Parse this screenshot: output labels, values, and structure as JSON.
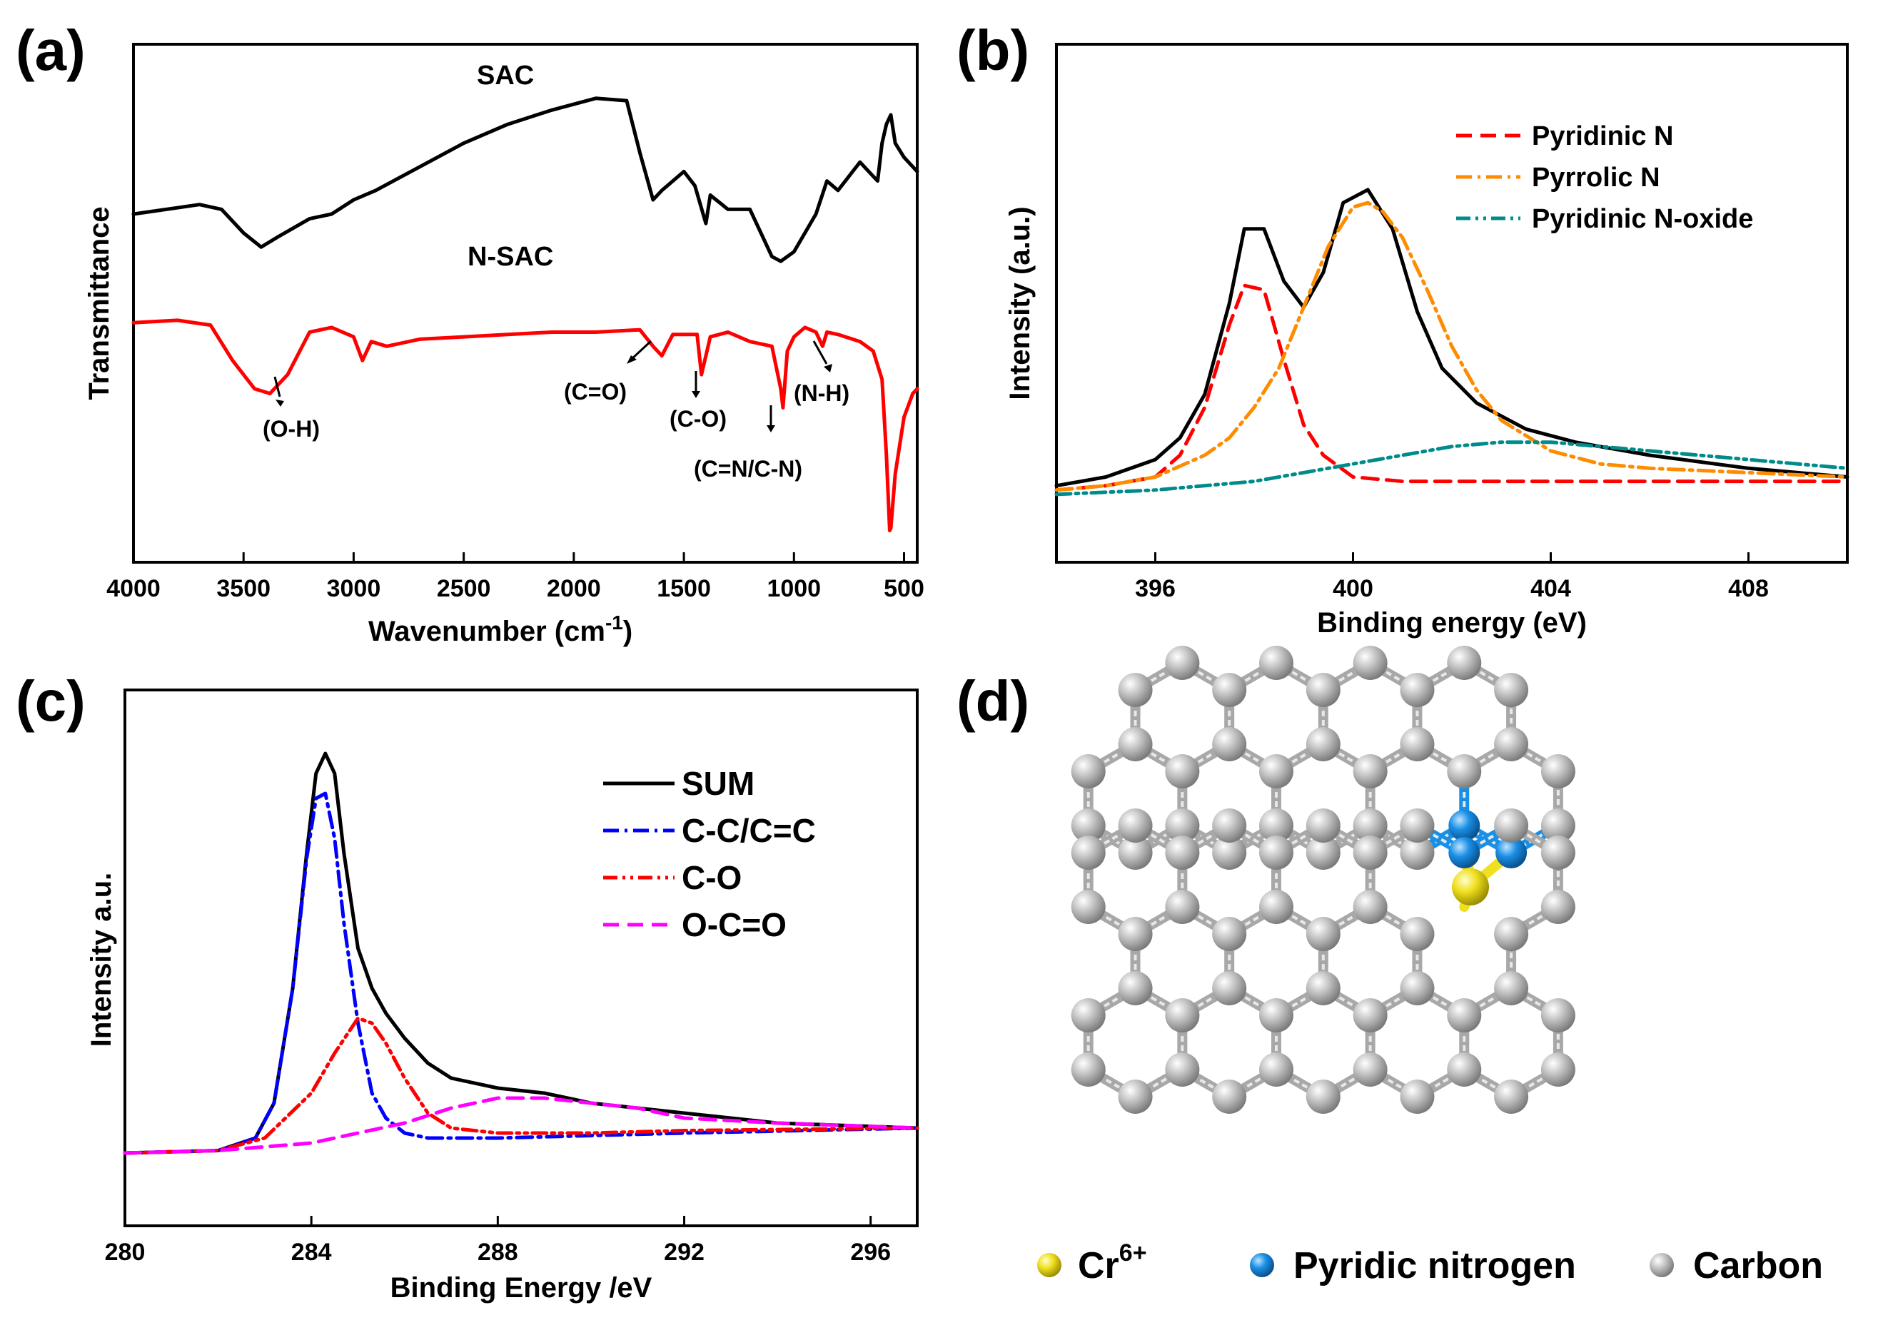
{
  "panels": {
    "a": {
      "label": "(a)"
    },
    "b": {
      "label": "(b)"
    },
    "c": {
      "label": "(c)"
    },
    "d": {
      "label": "(d)"
    }
  },
  "chart_data": [
    {
      "id": "a",
      "type": "line",
      "title": "",
      "xlabel": "Wavenumber (cm-1)",
      "xlabel_main": "Wavenumber (cm",
      "xlabel_sup": "-1",
      "xlabel_close": ")",
      "ylabel": "Transmittance",
      "xlim": [
        4000,
        440
      ],
      "ylim": [
        0,
        100
      ],
      "xticks": [
        4000,
        3500,
        3000,
        2500,
        2000,
        1500,
        1000,
        500
      ],
      "series": [
        {
          "name": "SAC",
          "color": "#000000",
          "x": [
            4000,
            3700,
            3600,
            3500,
            3420,
            3350,
            3200,
            3100,
            3000,
            2900,
            2700,
            2500,
            2300,
            2100,
            1900,
            1760,
            1700,
            1640,
            1600,
            1500,
            1450,
            1400,
            1380,
            1300,
            1200,
            1100,
            1060,
            1000,
            900,
            850,
            800,
            750,
            700,
            660,
            620,
            600,
            580,
            560,
            540,
            500,
            440
          ],
          "y": [
            71,
            73,
            72,
            67,
            64,
            66,
            70,
            71,
            74,
            76,
            81,
            86,
            90,
            93,
            95.5,
            95,
            84,
            74,
            76,
            80,
            77,
            69,
            75,
            72,
            72,
            62,
            61,
            63,
            71,
            78,
            76,
            79,
            82,
            80,
            78,
            86,
            90,
            92,
            86,
            83,
            80
          ]
        },
        {
          "name": "N-SAC",
          "color": "#ff0000",
          "x": [
            4000,
            3800,
            3650,
            3550,
            3450,
            3380,
            3300,
            3200,
            3100,
            3000,
            2960,
            2920,
            2850,
            2700,
            2500,
            2300,
            2100,
            1900,
            1700,
            1640,
            1600,
            1550,
            1440,
            1420,
            1380,
            1300,
            1200,
            1100,
            1060,
            1050,
            1030,
            1000,
            950,
            900,
            870,
            850,
            800,
            700,
            640,
            600,
            580,
            565,
            560,
            540,
            500,
            460,
            440
          ],
          "y": [
            48,
            48.5,
            47.5,
            40,
            34,
            33,
            37,
            46,
            47,
            45,
            40,
            44,
            43,
            44.5,
            45,
            45.5,
            46,
            46,
            46.5,
            43,
            41,
            45.5,
            45.5,
            37,
            45,
            46,
            44,
            43,
            34,
            30,
            42,
            45,
            47,
            46,
            43,
            46,
            45.5,
            44,
            42,
            36,
            20,
            4,
            4.5,
            16,
            28,
            33,
            34
          ]
        }
      ],
      "series_labels": [
        "SAC",
        "N-SAC"
      ],
      "annotations": [
        "(O-H)",
        "(C=O)",
        "(C-O)",
        "(C=N/C-N)",
        "(N-H)"
      ]
    },
    {
      "id": "b",
      "type": "line",
      "title": "",
      "xlabel": "Binding energy (eV)",
      "ylabel": "Intensity (a.u.)",
      "xlim": [
        394,
        410
      ],
      "ylim": [
        0,
        100
      ],
      "xticks": [
        396,
        400,
        404,
        408
      ],
      "legend_position": "top-right",
      "series": [
        {
          "name": "",
          "color": "#000000",
          "style": "solid",
          "x": [
            394,
            395,
            396,
            396.5,
            397,
            397.5,
            397.8,
            398.2,
            398.6,
            399,
            399.4,
            399.8,
            400.3,
            400.8,
            401.3,
            401.8,
            402.5,
            403.5,
            404.5,
            406,
            408,
            410
          ],
          "y": [
            13,
            15,
            19,
            24,
            34,
            55,
            72,
            72,
            60,
            54,
            62,
            78,
            81,
            72,
            53,
            40,
            32,
            26,
            23,
            20,
            17,
            15
          ]
        },
        {
          "name": "Pyridinic N",
          "color": "#ff0000",
          "style": "dashed",
          "x": [
            394,
            395,
            396,
            396.5,
            397,
            397.5,
            397.8,
            398.2,
            398.6,
            399,
            399.4,
            400,
            401,
            403,
            405,
            410
          ],
          "y": [
            12,
            13,
            15,
            20,
            31,
            50,
            59,
            58,
            42,
            27,
            20,
            15,
            14,
            14,
            14,
            14
          ]
        },
        {
          "name": "Pyrrolic N",
          "color": "#ff8c00",
          "style": "dashdot",
          "x": [
            394,
            395,
            396,
            397,
            397.5,
            398,
            398.5,
            399,
            399.5,
            400,
            400.3,
            400.6,
            401,
            401.5,
            402,
            402.5,
            403,
            404,
            405,
            406,
            408,
            410
          ],
          "y": [
            12,
            13,
            15,
            20,
            24,
            31,
            40,
            54,
            68,
            77,
            78,
            76,
            70,
            58,
            45,
            35,
            28,
            21,
            18,
            17,
            16,
            15
          ]
        },
        {
          "name": "Pyridinic N-oxide",
          "color": "#008b8b",
          "style": "dashdotdot",
          "x": [
            394,
            396,
            398,
            399,
            400,
            401,
            402,
            403,
            404,
            405,
            406,
            408,
            410
          ],
          "y": [
            11,
            12,
            14,
            16,
            18,
            20,
            22,
            23,
            23,
            22,
            21,
            19,
            17
          ]
        }
      ],
      "legend": [
        "Pyridinic N",
        "Pyrrolic N",
        "Pyridinic N-oxide"
      ]
    },
    {
      "id": "c",
      "type": "line",
      "title": "",
      "xlabel": "Binding Energy /eV",
      "ylabel": "Intensity a.u.",
      "xlim": [
        280,
        297
      ],
      "ylim": [
        0,
        100
      ],
      "xticks": [
        280,
        284,
        288,
        292,
        296
      ],
      "legend_position": "top-right",
      "series": [
        {
          "name": "SUM",
          "color": "#000000",
          "style": "solid",
          "x": [
            280,
            282,
            282.8,
            283.2,
            283.6,
            283.9,
            284.1,
            284.3,
            284.5,
            284.7,
            285,
            285.3,
            285.6,
            286,
            286.5,
            287,
            288,
            289,
            290,
            292,
            294,
            297
          ],
          "y": [
            12,
            12.5,
            15,
            22,
            45,
            72,
            88,
            92,
            88,
            72,
            53,
            45,
            40,
            35,
            30,
            27,
            25,
            24,
            22,
            20,
            18,
            17
          ]
        },
        {
          "name": "C-C/C=C",
          "color": "#0000ff",
          "style": "dashdot",
          "x": [
            280,
            282,
            282.8,
            283.2,
            283.6,
            283.9,
            284.1,
            284.3,
            284.5,
            284.7,
            285,
            285.3,
            285.6,
            286,
            286.5,
            288,
            292,
            297
          ],
          "y": [
            12,
            12.5,
            15,
            22,
            45,
            71,
            83,
            84,
            75,
            58,
            38,
            24,
            19,
            16,
            15,
            15,
            16,
            17
          ]
        },
        {
          "name": "C-O",
          "color": "#ff0000",
          "style": "dashdotdot",
          "x": [
            280,
            282,
            283,
            284,
            284.5,
            285,
            285.3,
            285.6,
            286,
            286.5,
            287,
            288,
            290,
            292,
            297
          ],
          "y": [
            12,
            12.5,
            15,
            24,
            32,
            39,
            38,
            34,
            27,
            20,
            17,
            16,
            16,
            16.5,
            17
          ]
        },
        {
          "name": "O-C=O",
          "color": "#ff00ff",
          "style": "dashed",
          "x": [
            280,
            282,
            284,
            286,
            287,
            288,
            289,
            290,
            291,
            292,
            294,
            297
          ],
          "y": [
            12,
            12.5,
            14,
            18,
            21,
            23,
            23,
            22,
            21,
            19,
            18,
            17
          ]
        }
      ],
      "legend": [
        "SUM",
        "C-C/C=C",
        "C-O",
        "O-C=O"
      ]
    }
  ],
  "legend_d": {
    "cr_main": "Cr",
    "cr_sup": "6+",
    "n_label": "Pyridic nitrogen",
    "c_label": "Carbon",
    "colors": {
      "cr": "#f0e020",
      "n": "#1a8fe6",
      "c": "#b8b8b8"
    }
  }
}
